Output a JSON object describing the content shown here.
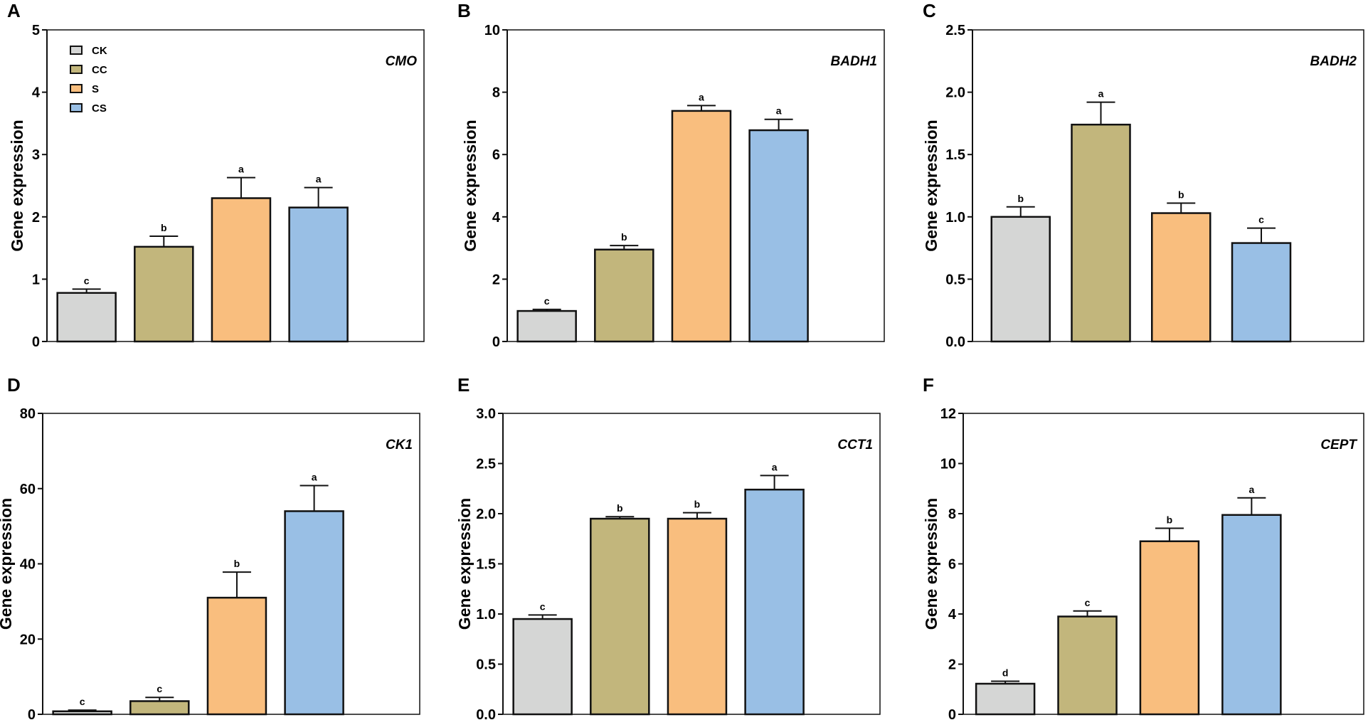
{
  "chart_data": [
    {
      "type": "bar",
      "panel": "A",
      "title": "CMO",
      "ylabel": "Gene expression",
      "ylim": [
        0,
        5
      ],
      "yticks": [
        0,
        1,
        2,
        3,
        4,
        5
      ],
      "ytick_labels": [
        "0",
        "1",
        "2",
        "3",
        "4",
        "5"
      ],
      "categories": [
        "CK",
        "CC",
        "S",
        "CS"
      ],
      "values": [
        0.78,
        1.52,
        2.3,
        2.15
      ],
      "errors": [
        0.06,
        0.17,
        0.33,
        0.32
      ],
      "significance": [
        "c",
        "b",
        "a",
        "a"
      ]
    },
    {
      "type": "bar",
      "panel": "B",
      "title": "BADH1",
      "ylabel": "Gene expression",
      "ylim": [
        0,
        10
      ],
      "yticks": [
        0,
        2,
        4,
        6,
        8,
        10
      ],
      "ytick_labels": [
        "0",
        "2",
        "4",
        "6",
        "8",
        "10"
      ],
      "categories": [
        "CK",
        "CC",
        "S",
        "CS"
      ],
      "values": [
        0.98,
        2.95,
        7.4,
        6.78
      ],
      "errors": [
        0.05,
        0.13,
        0.17,
        0.35
      ],
      "significance": [
        "c",
        "b",
        "a",
        "a"
      ]
    },
    {
      "type": "bar",
      "panel": "C",
      "title": "BADH2",
      "ylabel": "Gene expression",
      "ylim": [
        0,
        2.5
      ],
      "yticks": [
        0,
        0.5,
        1,
        1.5,
        2,
        2.5
      ],
      "ytick_labels": [
        "0.0",
        "0.5",
        "1.0",
        "1.5",
        "2.0",
        "2.5"
      ],
      "categories": [
        "CK",
        "CC",
        "S",
        "CS"
      ],
      "values": [
        1.0,
        1.74,
        1.03,
        0.79
      ],
      "errors": [
        0.08,
        0.18,
        0.08,
        0.12
      ],
      "significance": [
        "b",
        "a",
        "b",
        "c"
      ]
    },
    {
      "type": "bar",
      "panel": "D",
      "title": "CK1",
      "ylabel": "Gene expression",
      "ylim": [
        0,
        80
      ],
      "yticks": [
        0,
        20,
        40,
        60,
        80
      ],
      "ytick_labels": [
        "0",
        "20",
        "40",
        "60",
        "80"
      ],
      "categories": [
        "CK",
        "CC",
        "S",
        "CS"
      ],
      "values": [
        0.8,
        3.5,
        31.0,
        54.0
      ],
      "errors": [
        0.3,
        1.0,
        6.8,
        6.8
      ],
      "significance": [
        "c",
        "c",
        "b",
        "a"
      ]
    },
    {
      "type": "bar",
      "panel": "E",
      "title": "CCT1",
      "ylabel": "Gene expression",
      "ylim": [
        0,
        3
      ],
      "yticks": [
        0,
        0.5,
        1,
        1.5,
        2,
        2.5,
        3
      ],
      "ytick_labels": [
        "0.0",
        "0.5",
        "1.0",
        "1.5",
        "2.0",
        "2.5",
        "3.0"
      ],
      "categories": [
        "CK",
        "CC",
        "S",
        "CS"
      ],
      "values": [
        0.95,
        1.95,
        1.95,
        2.24
      ],
      "errors": [
        0.04,
        0.02,
        0.06,
        0.14
      ],
      "significance": [
        "c",
        "b",
        "b",
        "a"
      ]
    },
    {
      "type": "bar",
      "panel": "F",
      "title": "CEPT",
      "ylabel": "Gene expression",
      "ylim": [
        0,
        12
      ],
      "yticks": [
        0,
        2,
        4,
        6,
        8,
        10,
        12
      ],
      "ytick_labels": [
        "0",
        "2",
        "4",
        "6",
        "8",
        "10",
        "12"
      ],
      "categories": [
        "CK",
        "CC",
        "S",
        "CS"
      ],
      "values": [
        1.22,
        3.9,
        6.9,
        7.95
      ],
      "errors": [
        0.1,
        0.22,
        0.52,
        0.68
      ],
      "significance": [
        "d",
        "c",
        "b",
        "a"
      ]
    }
  ],
  "legend": {
    "items": [
      {
        "label": "CK",
        "color": "#d5d6d5"
      },
      {
        "label": "CC",
        "color": "#c2b67c"
      },
      {
        "label": "S",
        "color": "#f9be7e"
      },
      {
        "label": "CS",
        "color": "#99bfe5"
      }
    ]
  },
  "colors": {
    "CK": "#d5d6d5",
    "CC": "#c2b67c",
    "S": "#f9be7e",
    "CS": "#99bfe5",
    "stroke": "#111111"
  }
}
